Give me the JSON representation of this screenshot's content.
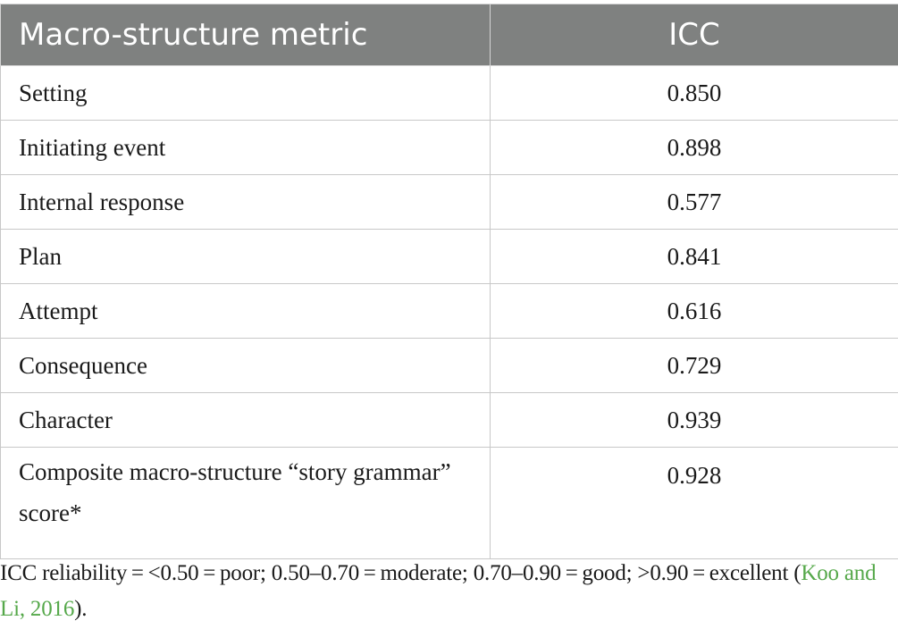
{
  "table": {
    "headers": {
      "metric": "Macro-structure metric",
      "icc": "ICC"
    },
    "rows": [
      {
        "metric": "Setting",
        "icc": "0.850"
      },
      {
        "metric": "Initiating event",
        "icc": "0.898"
      },
      {
        "metric": "Internal response",
        "icc": "0.577"
      },
      {
        "metric": "Plan",
        "icc": "0.841"
      },
      {
        "metric": "Attempt",
        "icc": "0.616"
      },
      {
        "metric": "Consequence",
        "icc": "0.729"
      },
      {
        "metric": "Character",
        "icc": "0.939"
      },
      {
        "metric": "Composite macro-structure “story grammar” score*",
        "icc": "0.928"
      }
    ]
  },
  "footnote": {
    "text": "ICC reliability = <0.50 = poor; 0.50–0.70 = moderate; 0.70–0.90 = good; >0.90 = excellent (",
    "citation": "Koo and Li, 2016",
    "end": ").",
    "citation_color": "#55a84a"
  }
}
